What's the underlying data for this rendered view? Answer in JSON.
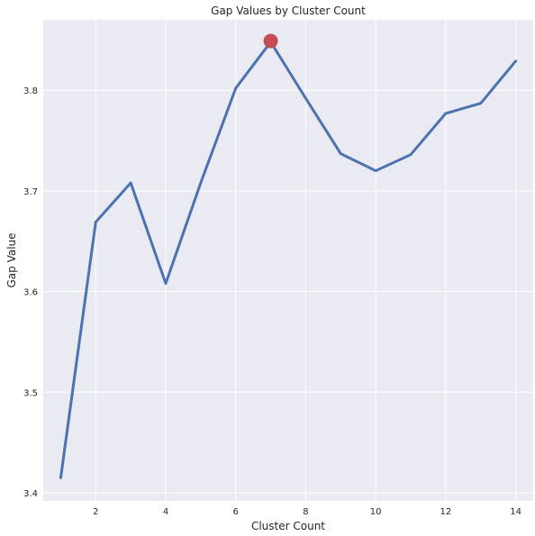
{
  "chart_data": {
    "type": "line",
    "title": "Gap Values by Cluster Count",
    "xlabel": "Cluster Count",
    "ylabel": "Gap Value",
    "xlim": [
      0.5,
      14.5
    ],
    "ylim": [
      3.392,
      3.87
    ],
    "xticks": [
      2,
      4,
      6,
      8,
      10,
      12,
      14
    ],
    "yticks": [
      3.4,
      3.5,
      3.6,
      3.7,
      3.8
    ],
    "grid": true,
    "series": [
      {
        "x": [
          1,
          2,
          3,
          4,
          5,
          6,
          7,
          8,
          9,
          10,
          11,
          12,
          13,
          14
        ],
        "values": [
          3.415,
          3.669,
          3.708,
          3.608,
          3.708,
          3.802,
          3.848,
          3.792,
          3.737,
          3.72,
          3.736,
          3.777,
          3.787,
          3.829
        ],
        "color": "#4c72b0"
      }
    ],
    "highlight": {
      "x": 7,
      "y": 3.849,
      "color": "#c44e52"
    },
    "background_color": "#eaeaf2"
  }
}
